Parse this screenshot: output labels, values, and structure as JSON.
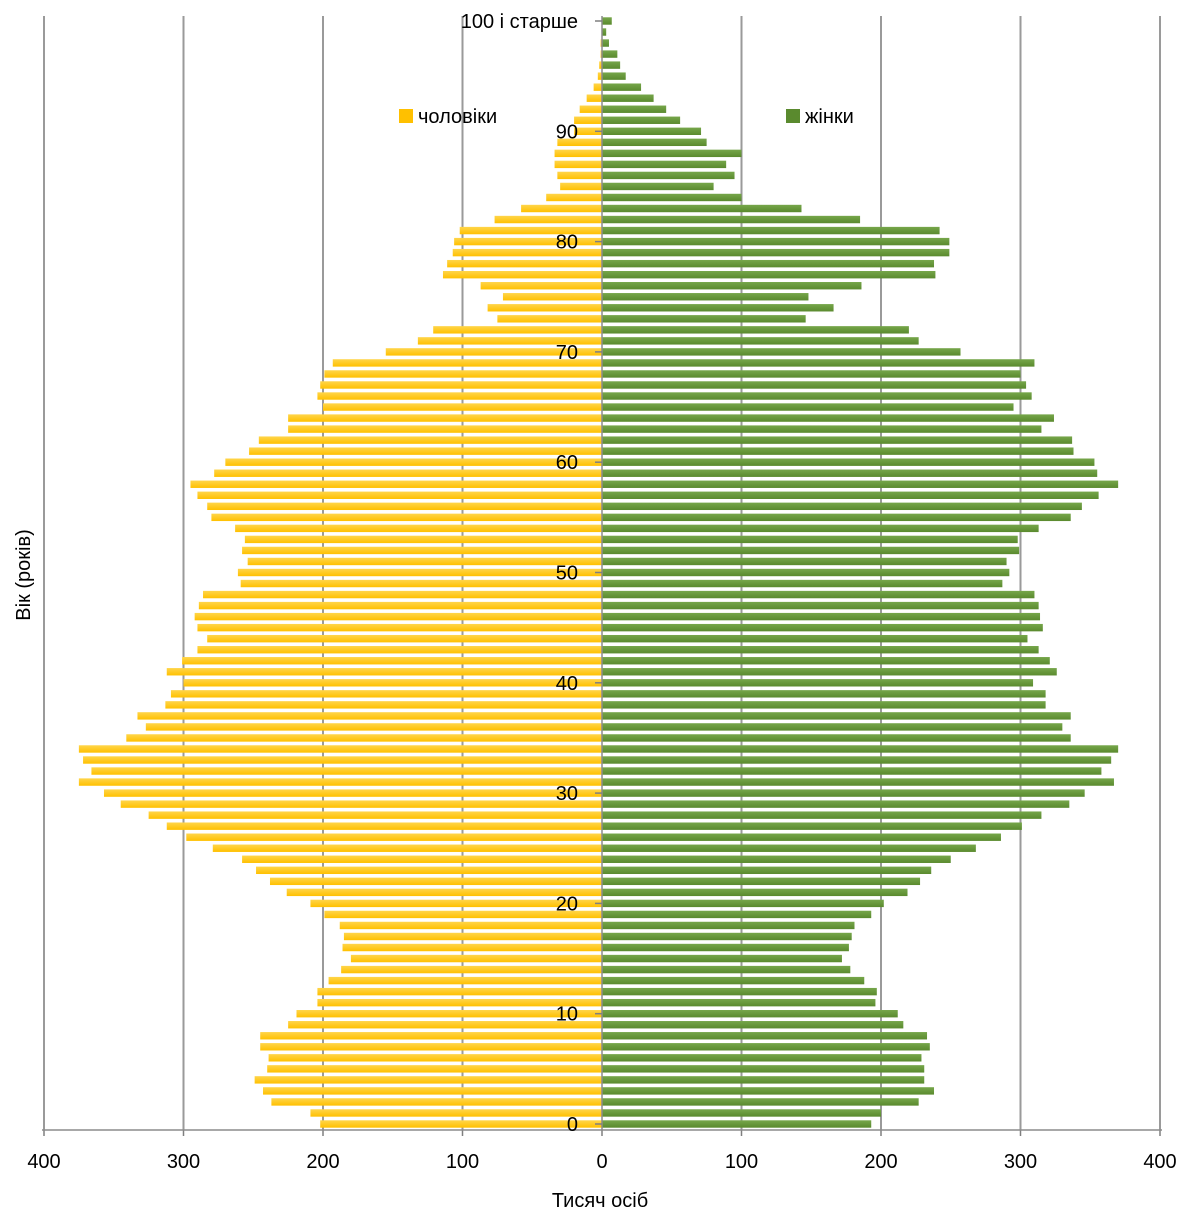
{
  "chart_data": {
    "type": "bar",
    "orientation": "horizontal",
    "subtype": "population-pyramid",
    "xlabel": "Тисяч осіб",
    "ylabel": "Вік (років)",
    "xlim": [
      -400,
      400
    ],
    "x_ticks": [
      -400,
      -300,
      -200,
      -100,
      0,
      100,
      200,
      300,
      400
    ],
    "x_tick_labels": [
      "400",
      "300",
      "200",
      "100",
      "0",
      "100",
      "200",
      "300",
      "400"
    ],
    "y_ticks": [
      0,
      10,
      20,
      30,
      40,
      50,
      60,
      70,
      80,
      90,
      100
    ],
    "y_tick_labels": [
      "0",
      "10",
      "20",
      "30",
      "40",
      "50",
      "60",
      "70",
      "80",
      "90",
      "100 і старше"
    ],
    "grid": true,
    "legend_position": "top, inside plot",
    "colors": {
      "male": "#FFC000",
      "female": "#5A8A2E"
    },
    "series": [
      {
        "name": "чоловіки",
        "side": "left",
        "ages_from": 0,
        "values": [
          202,
          209,
          237,
          243,
          249,
          240,
          239,
          245,
          245,
          225,
          219,
          204,
          204,
          196,
          187,
          180,
          186,
          185,
          188,
          199,
          209,
          226,
          238,
          248,
          258,
          279,
          298,
          312,
          325,
          345,
          357,
          375,
          366,
          372,
          375,
          341,
          327,
          333,
          313,
          309,
          300,
          312,
          301,
          290,
          283,
          290,
          292,
          289,
          286,
          259,
          261,
          254,
          258,
          256,
          263,
          280,
          283,
          290,
          295,
          278,
          270,
          253,
          246,
          225,
          225,
          200,
          204,
          202,
          199,
          193,
          155,
          132,
          121,
          75,
          82,
          71,
          87,
          114,
          111,
          107,
          106,
          102,
          77,
          58,
          40,
          30,
          32,
          34,
          34,
          32,
          20,
          20,
          16,
          11,
          6,
          3,
          2,
          1,
          1,
          0,
          0
        ]
      },
      {
        "name": "жінки",
        "side": "right",
        "ages_from": 0,
        "values": [
          193,
          200,
          227,
          238,
          231,
          231,
          229,
          235,
          233,
          216,
          212,
          196,
          197,
          188,
          178,
          172,
          177,
          179,
          181,
          193,
          202,
          219,
          228,
          236,
          250,
          268,
          286,
          301,
          315,
          335,
          346,
          367,
          358,
          365,
          370,
          336,
          330,
          336,
          318,
          318,
          309,
          326,
          321,
          313,
          305,
          316,
          314,
          313,
          310,
          287,
          292,
          290,
          299,
          298,
          313,
          336,
          344,
          356,
          370,
          355,
          353,
          338,
          337,
          315,
          324,
          295,
          308,
          304,
          300,
          310,
          257,
          227,
          220,
          146,
          166,
          148,
          186,
          239,
          238,
          249,
          249,
          242,
          185,
          143,
          100,
          80,
          95,
          89,
          100,
          75,
          71,
          56,
          46,
          37,
          28,
          17,
          13,
          11,
          5,
          3,
          7
        ]
      }
    ]
  }
}
